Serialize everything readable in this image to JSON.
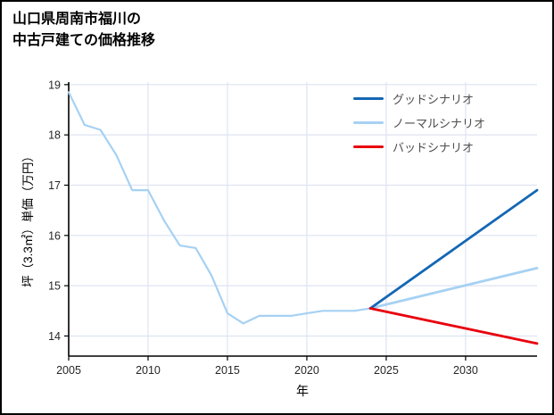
{
  "title": {
    "line1": "山口県周南市福川の",
    "line2": "中古戸建ての価格推移"
  },
  "chart_data": {
    "type": "line",
    "title": "山口県周南市福川の中古戸建ての価格推移",
    "xlabel": "年",
    "ylabel": "坪（3.3㎡）単価（万円）",
    "xlim": [
      2005,
      2034.5
    ],
    "ylim": [
      13.6,
      19.05
    ],
    "xticks": [
      2005,
      2010,
      2015,
      2020,
      2025,
      2030
    ],
    "yticks": [
      14,
      15,
      16,
      17,
      18,
      19
    ],
    "grid": true,
    "legend_position": "upper right",
    "colors": {
      "grid": "#dde3f2",
      "axis": "#000000",
      "tick_label": "#262626",
      "good": "#1467b5",
      "normal": "#a6d1f3",
      "bad": "#e8000d"
    },
    "series": [
      {
        "name": "historical",
        "in_legend": false,
        "color": "normal",
        "width": 2.2,
        "x": [
          2005,
          2006,
          2007,
          2008,
          2009,
          2010,
          2011,
          2012,
          2013,
          2014,
          2015,
          2016,
          2017,
          2018,
          2019,
          2020,
          2021,
          2022,
          2023,
          2024
        ],
        "y": [
          18.85,
          18.2,
          18.1,
          17.6,
          16.9,
          16.9,
          16.3,
          15.8,
          15.75,
          15.2,
          14.45,
          14.25,
          14.4,
          14.4,
          14.4,
          14.45,
          14.5,
          14.5,
          14.5,
          14.55
        ]
      },
      {
        "name": "ノーマルシナリオ",
        "in_legend": true,
        "color": "normal",
        "width": 2.8,
        "x": [
          2024,
          2034.5
        ],
        "y": [
          14.55,
          15.35
        ]
      },
      {
        "name": "グッドシナリオ",
        "in_legend": true,
        "color": "good",
        "width": 2.8,
        "x": [
          2024,
          2034.5
        ],
        "y": [
          14.55,
          16.9
        ]
      },
      {
        "name": "バッドシナリオ",
        "in_legend": true,
        "color": "bad",
        "width": 2.8,
        "x": [
          2024,
          2034.5
        ],
        "y": [
          14.55,
          13.85
        ]
      }
    ],
    "legend": [
      {
        "label": "グッドシナリオ",
        "color": "good"
      },
      {
        "label": "ノーマルシナリオ",
        "color": "normal"
      },
      {
        "label": "バッドシナリオ",
        "color": "bad"
      }
    ]
  }
}
